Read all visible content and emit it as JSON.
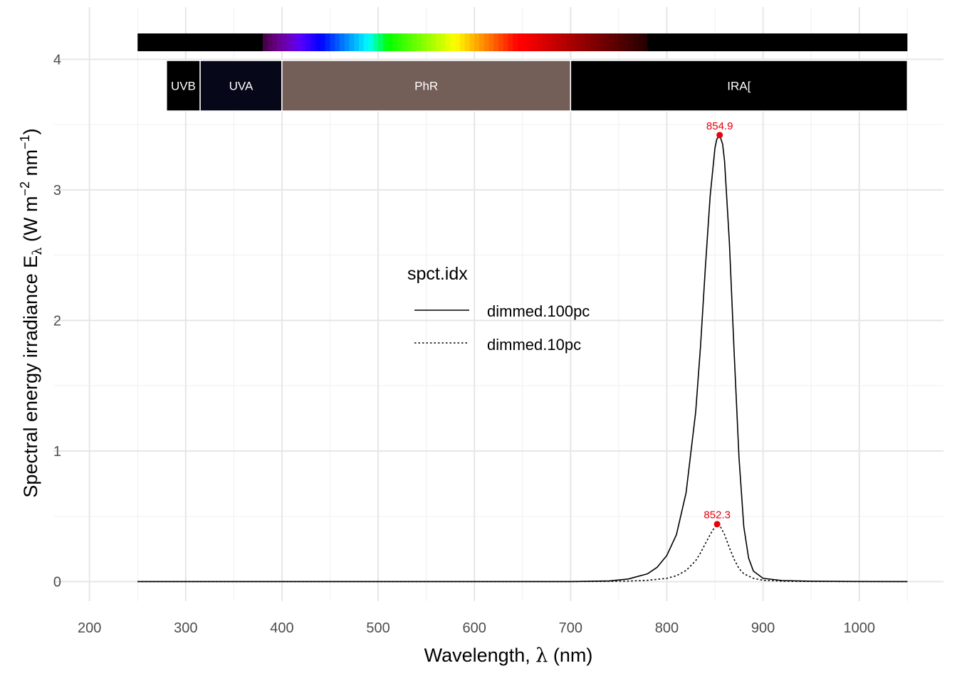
{
  "chart_data": {
    "type": "line",
    "xlabel": {
      "main": "Wavelength, ",
      "symbol": "λ",
      "unit": " (nm)"
    },
    "ylabel": {
      "prefix": "Spectral  energy  irradiance  E",
      "sub": "λ",
      "unit_open": "  (W m",
      "exp1": "−2",
      "mid": " nm",
      "exp2": "−1",
      "unit_close": ")"
    },
    "xlim": [
      200,
      1050
    ],
    "ylim": [
      -0.15,
      4.4
    ],
    "x_ticks": [
      200,
      300,
      400,
      500,
      600,
      700,
      800,
      900,
      1000
    ],
    "x_tick_labels": [
      "200",
      "300",
      "400",
      "500",
      "600",
      "700",
      "800",
      "900",
      "1000"
    ],
    "y_ticks": [
      0,
      1,
      2,
      3,
      4
    ],
    "y_tick_labels": [
      "0",
      "1",
      "2",
      "3",
      "4"
    ],
    "grid": true,
    "legend": {
      "title": "spct.idx",
      "placement": "center",
      "entries": [
        {
          "label": "dimmed.100pc",
          "style": "solid"
        },
        {
          "label": "dimmed.10pc",
          "style": "dotted"
        }
      ]
    },
    "series": [
      {
        "name": "dimmed.100pc",
        "style": "solid",
        "color": "#000000",
        "x": [
          250,
          700,
          740,
          760,
          780,
          790,
          800,
          810,
          820,
          830,
          835,
          840,
          845,
          850,
          852,
          854.9,
          858,
          860,
          865,
          870,
          875,
          880,
          885,
          890,
          900,
          920,
          950,
          1000,
          1050
        ],
        "y": [
          0,
          0,
          0.005,
          0.02,
          0.06,
          0.11,
          0.2,
          0.36,
          0.68,
          1.3,
          1.8,
          2.4,
          2.95,
          3.32,
          3.39,
          3.42,
          3.35,
          3.22,
          2.6,
          1.75,
          0.95,
          0.42,
          0.18,
          0.08,
          0.025,
          0.008,
          0.003,
          0.001,
          0
        ]
      },
      {
        "name": "dimmed.10pc",
        "style": "dotted",
        "color": "#000000",
        "x": [
          250,
          700,
          740,
          760,
          780,
          800,
          810,
          820,
          830,
          835,
          840,
          845,
          850,
          852.3,
          855,
          860,
          865,
          870,
          875,
          880,
          890,
          900,
          920,
          950,
          1000,
          1050
        ],
        "y": [
          0,
          0,
          0.002,
          0.004,
          0.01,
          0.025,
          0.045,
          0.085,
          0.16,
          0.22,
          0.29,
          0.36,
          0.42,
          0.44,
          0.43,
          0.36,
          0.26,
          0.17,
          0.1,
          0.06,
          0.025,
          0.01,
          0.003,
          0.001,
          0,
          0
        ]
      }
    ],
    "peaks": [
      {
        "x": 854.9,
        "y": 3.42,
        "label": "854.9"
      },
      {
        "x": 852.3,
        "y": 0.44,
        "label": "852.3"
      }
    ],
    "peak_color": "#e8000b",
    "color_bar": {
      "x_start": 250,
      "x_end": 1050
    },
    "wavebands": [
      {
        "label": "UVB",
        "from": 280,
        "to": 315,
        "color": "#000000"
      },
      {
        "label": "UVA",
        "from": 315,
        "to": 400,
        "color": "#07071a"
      },
      {
        "label": "PhR",
        "from": 400,
        "to": 700,
        "color": "#735e58"
      },
      {
        "label": "IRA[",
        "from": 700,
        "to": 1050,
        "color": "#000000"
      }
    ]
  }
}
